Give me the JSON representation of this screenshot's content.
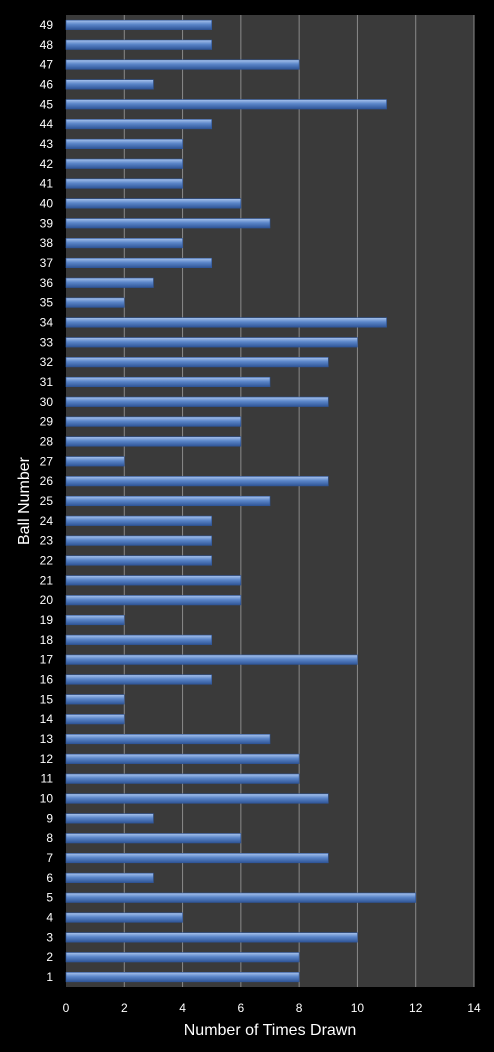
{
  "chart_data": {
    "type": "bar",
    "orientation": "horizontal",
    "title": "",
    "xlabel": "Number of Times Drawn",
    "ylabel": "Ball Number",
    "xlim": [
      0,
      14
    ],
    "xticks": [
      0,
      2,
      4,
      6,
      8,
      10,
      12,
      14
    ],
    "grid": "vertical",
    "categories": [
      "1",
      "2",
      "3",
      "4",
      "5",
      "6",
      "7",
      "8",
      "9",
      "10",
      "11",
      "12",
      "13",
      "14",
      "15",
      "16",
      "17",
      "18",
      "19",
      "20",
      "21",
      "22",
      "23",
      "24",
      "25",
      "26",
      "27",
      "28",
      "29",
      "30",
      "31",
      "32",
      "33",
      "34",
      "35",
      "36",
      "37",
      "38",
      "39",
      "40",
      "41",
      "42",
      "43",
      "44",
      "45",
      "46",
      "47",
      "48",
      "49"
    ],
    "values": [
      8,
      8,
      10,
      4,
      12,
      3,
      9,
      6,
      3,
      9,
      8,
      8,
      7,
      2,
      2,
      5,
      10,
      5,
      2,
      6,
      6,
      5,
      5,
      5,
      7,
      9,
      2,
      6,
      6,
      9,
      7,
      9,
      10,
      11,
      2,
      3,
      5,
      4,
      7,
      6,
      4,
      4,
      4,
      5,
      11,
      3,
      8,
      5,
      5
    ],
    "colors": {
      "background": "#000000",
      "plot_area": "#3a3a3a",
      "bar": "#5b86c9",
      "bar_light": "#a9c4ee",
      "bar_dark": "#2f5597",
      "grid": "#8a8a8a",
      "text": "#ffffff"
    }
  }
}
